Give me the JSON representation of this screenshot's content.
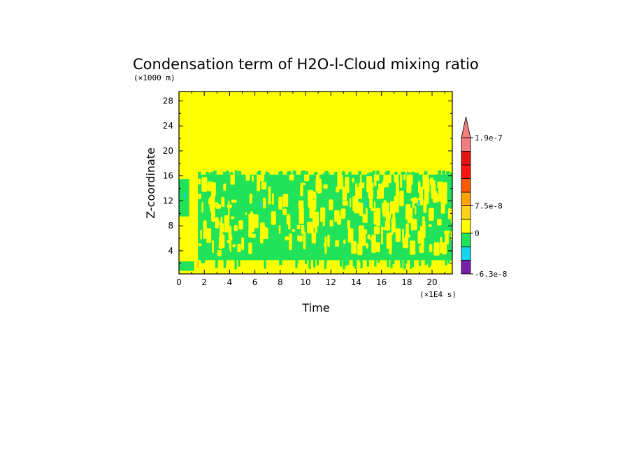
{
  "chart_data": {
    "type": "heatmap",
    "title": "Condensation term of H2O-l-Cloud mixing ratio",
    "xlabel": "Time",
    "ylabel": "Z-coordinate",
    "x_unit_note": "(×1E4 s)",
    "y_unit_note": "(×1000 m)",
    "xlim": [
      0,
      21.6
    ],
    "ylim": [
      0.3,
      29.5
    ],
    "x_ticks": [
      0,
      2,
      4,
      6,
      8,
      10,
      12,
      14,
      16,
      18,
      20
    ],
    "y_ticks": [
      4,
      8,
      12,
      16,
      20,
      24,
      28
    ],
    "colorbar": {
      "levels": [
        {
          "color": "#7a1fa8"
        },
        {
          "color": "#12d6f0"
        },
        {
          "color": "#20e35a"
        },
        {
          "color": "#ffff00"
        },
        {
          "color": "#ffd21a"
        },
        {
          "color": "#ffa300"
        },
        {
          "color": "#ff5a00"
        },
        {
          "color": "#ff1414"
        },
        {
          "color": "#e11414"
        },
        {
          "color": "#f47e7e"
        }
      ],
      "labels": [
        {
          "text": "-6.3e-8",
          "level_index": 0
        },
        {
          "text": "0",
          "level_index": 3
        },
        {
          "text": "7.5e-8",
          "level_index": 5
        },
        {
          "text": "1.9e-7",
          "level_index": 10
        }
      ],
      "extend_max": true
    },
    "regions": [
      {
        "description_level": "background",
        "color": "#ffff00"
      },
      {
        "color": "#20e35a",
        "x_range": [
          1.5,
          21.6
        ],
        "z_range": [
          2.5,
          16.2
        ]
      },
      {
        "color": "#20e35a",
        "x_range": [
          0,
          0.8
        ],
        "z_range": [
          9.5,
          15.5
        ]
      },
      {
        "color": "#12d6f0",
        "points": [
          [
            6.4,
            11.0
          ],
          [
            14.7,
            11.2
          ],
          [
            18.9,
            11.3
          ],
          [
            0.4,
            12.5
          ]
        ]
      },
      {
        "color": "#ffd21a",
        "points": [
          [
            1.4,
            1.3
          ]
        ]
      }
    ]
  }
}
